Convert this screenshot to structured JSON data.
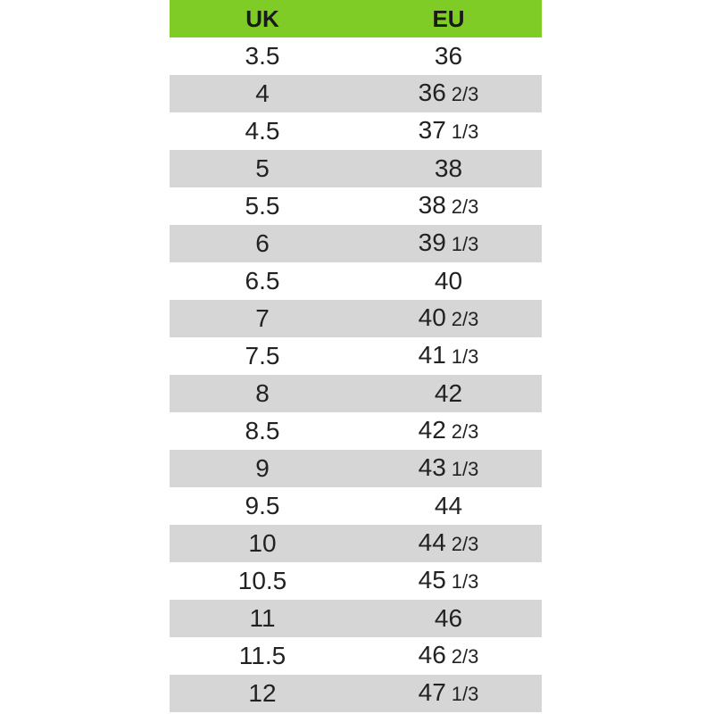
{
  "table": {
    "header": [
      "UK",
      "EU"
    ],
    "rows": [
      {
        "uk": "3.5",
        "eu": "36"
      },
      {
        "uk": "4",
        "eu": "36",
        "eu_fraction": "2/3"
      },
      {
        "uk": "4.5",
        "eu": "37",
        "eu_fraction": "1/3"
      },
      {
        "uk": "5",
        "eu": "38"
      },
      {
        "uk": "5.5",
        "eu": "38",
        "eu_fraction": "2/3"
      },
      {
        "uk": "6",
        "eu": "39",
        "eu_fraction": "1/3"
      },
      {
        "uk": "6.5",
        "eu": "40"
      },
      {
        "uk": "7",
        "eu": "40",
        "eu_fraction": "2/3"
      },
      {
        "uk": "7.5",
        "eu": "41",
        "eu_fraction": "1/3"
      },
      {
        "uk": "8",
        "eu": "42"
      },
      {
        "uk": "8.5",
        "eu": "42",
        "eu_fraction": "2/3"
      },
      {
        "uk": "9",
        "eu": "43",
        "eu_fraction": "1/3"
      },
      {
        "uk": "9.5",
        "eu": "44"
      },
      {
        "uk": "10",
        "eu": "44",
        "eu_fraction": "2/3"
      },
      {
        "uk": "10.5",
        "eu": "45",
        "eu_fraction": "1/3"
      },
      {
        "uk": "11",
        "eu": "46"
      },
      {
        "uk": "11.5",
        "eu": "46",
        "eu_fraction": "2/3"
      },
      {
        "uk": "12",
        "eu": "47",
        "eu_fraction": "1/3"
      }
    ]
  }
}
